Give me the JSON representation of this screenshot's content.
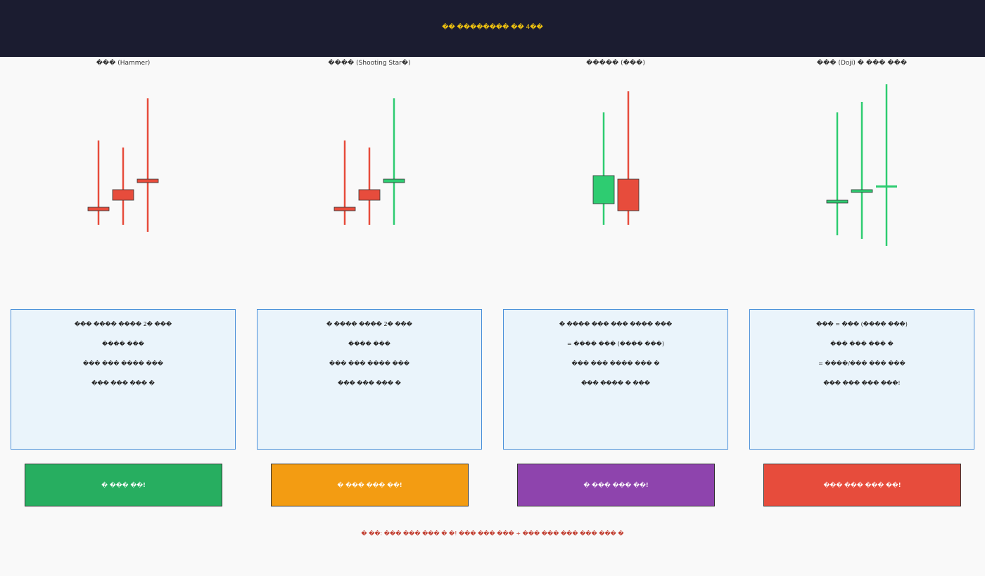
{
  "header": {
    "title": "�� �������� �� 4��"
  },
  "colors": {
    "bearish": "#e74c3c",
    "bullish": "#2ecc71",
    "header_bg": "#1b1c30",
    "header_title": "#f1c40f",
    "box_border": "#4a90d9",
    "box_fill": "#eaf4fb",
    "footer_note": "#c0392b"
  },
  "panels": [
    {
      "title": "��� (Hammer)",
      "description": [
        "��� ���� ���� 2� ���",
        "���� ���",
        "��� ��� ���� ���",
        "��� ��� ��� �"
      ],
      "signal": {
        "label": "� ��� ��!",
        "color": "#27ae60"
      }
    },
    {
      "title": "���� (Shooting Star�)",
      "description": [
        "� ���� ���� 2� ���",
        "���� ���",
        "��� ��� ���� ���",
        "��� ��� ��� �"
      ],
      "signal": {
        "label": "� ��� ��� ��!",
        "color": "#f39c12"
      }
    },
    {
      "title": "����� (���)",
      "description": [
        "� ���� ��� ��� ���� ���",
        "= ���� ��� (���� ���)",
        "��� ��� ���� ��� �",
        "��� ���� � ���"
      ],
      "signal": {
        "label": "� ��� ��� ��!",
        "color": "#8e44ad"
      }
    },
    {
      "title": "��� (Doji) � ��� ���",
      "description": [
        "��� = ��� (���� ���)",
        "��� ��� ��� �",
        "= ����/��� ��� ���",
        "��� ��� ��� ���!"
      ],
      "signal": {
        "label": "��� ��� ��� ��!",
        "color": "#e74c3c"
      }
    }
  ],
  "footer": {
    "note": "� ��: ��� ��� ��� � �! ��� ��� ��� + ��� ��� ��� ��� ��� �"
  }
}
